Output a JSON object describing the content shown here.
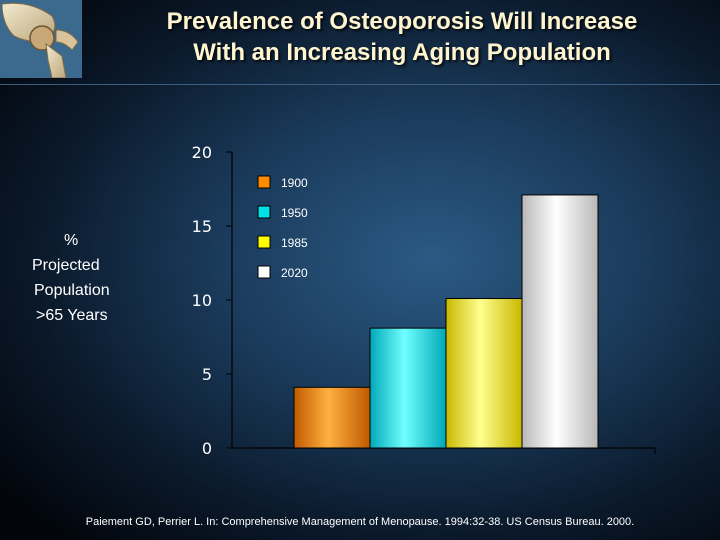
{
  "slide": {
    "title_line1": "Prevalence of Osteoporosis Will Increase",
    "title_line2": "With an Increasing Aging Population",
    "ylabel_lines": [
      "%",
      "Projected",
      "Population",
      ">65 Years"
    ],
    "footer": "Paiement GD, Perrier L. In: Comprehensive Management of Menopause. 1994:32-38.  US Census Bureau. 2000."
  },
  "logo_icon": "hip-joint-bone-icon",
  "chart_data": {
    "type": "bar",
    "title": "",
    "xlabel": "",
    "ylabel": "% Projected Population >65 Years",
    "categories": [
      "1900",
      "1950",
      "1985",
      "2020"
    ],
    "values": [
      4.1,
      8.1,
      10.1,
      17.1
    ],
    "colors": [
      "#ff8c00",
      "#00e0e8",
      "#ffff00",
      "#ffffff"
    ],
    "ylim": [
      0,
      20
    ],
    "yticks": [
      0,
      5,
      10,
      15,
      20
    ],
    "legend": {
      "entries": [
        "1900",
        "1950",
        "1985",
        "2020"
      ],
      "placement": "top-left"
    },
    "grid": false
  }
}
